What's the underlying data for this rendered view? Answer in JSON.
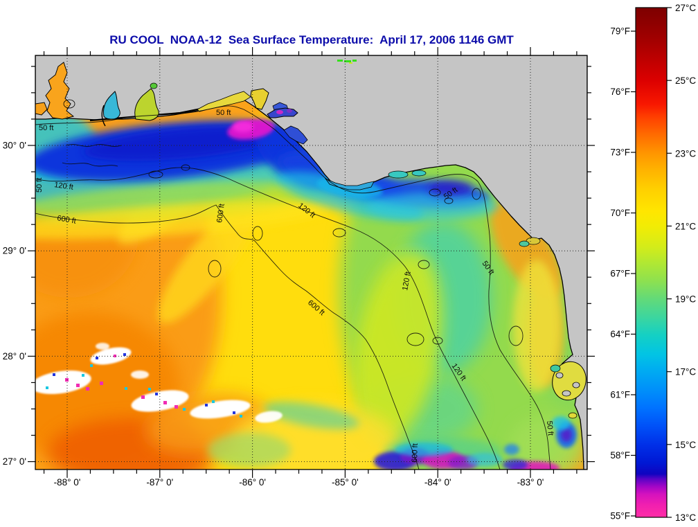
{
  "figure": {
    "title": "RU COOL  NOAA-12  Sea Surface Temperature:  April 17, 2006 1146 GMT",
    "title_color": "#0c0caa"
  },
  "chart_data": {
    "type": "heatmap",
    "title": "RU COOL  NOAA-12  Sea Surface Temperature:  April 17, 2006 1146 GMT",
    "x_ticks": [
      "-88° 0'",
      "-87° 0'",
      "-86° 0'",
      "-85° 0'",
      "-84° 0'",
      "-83° 0'"
    ],
    "y_ticks": [
      "30° 0'",
      "29° 0'",
      "28° 0'",
      "27° 0'"
    ],
    "x_range_deg": [
      -88.34,
      -82.4
    ],
    "y_range_deg": [
      26.92,
      30.86
    ],
    "grid": "dotted",
    "land_color": "#c5c5c5",
    "colorbar": {
      "orientation": "vertical",
      "fahrenheit_labels": [
        "79°F",
        "76°F",
        "73°F",
        "70°F",
        "67°F",
        "64°F",
        "61°F",
        "58°F",
        "55°F"
      ],
      "celsius_labels": [
        "27°C",
        "25°C",
        "23°C",
        "21°C",
        "19°C",
        "17°C",
        "15°C",
        "13°C"
      ],
      "min_c": 13,
      "max_c": 27,
      "gradient_top_to_bottom": [
        "#7e0000",
        "#a80000",
        "#dc0000",
        "#ff4000",
        "#ff9600",
        "#ffd000",
        "#f2ec04",
        "#b2e832",
        "#63da78",
        "#14d0c4",
        "#00aaf2",
        "#0072ff",
        "#0030e8",
        "#1004c0",
        "#a406c6",
        "#f01fb0",
        "#ff2ea6"
      ]
    },
    "contour_labels": [
      "50 ft",
      "50 ft",
      "120 ft",
      "600 ft",
      "50 ft",
      "600 ft",
      "120 ft",
      "50 ft",
      "600 ft",
      "50 ft",
      "120 ft",
      "600 ft",
      "50 ft",
      "120 ft"
    ],
    "contour_units": "ft",
    "features": {
      "warm_region_c": 23.5,
      "cold_band_c": 15.5,
      "coldest_patch_c": 13.5
    }
  }
}
